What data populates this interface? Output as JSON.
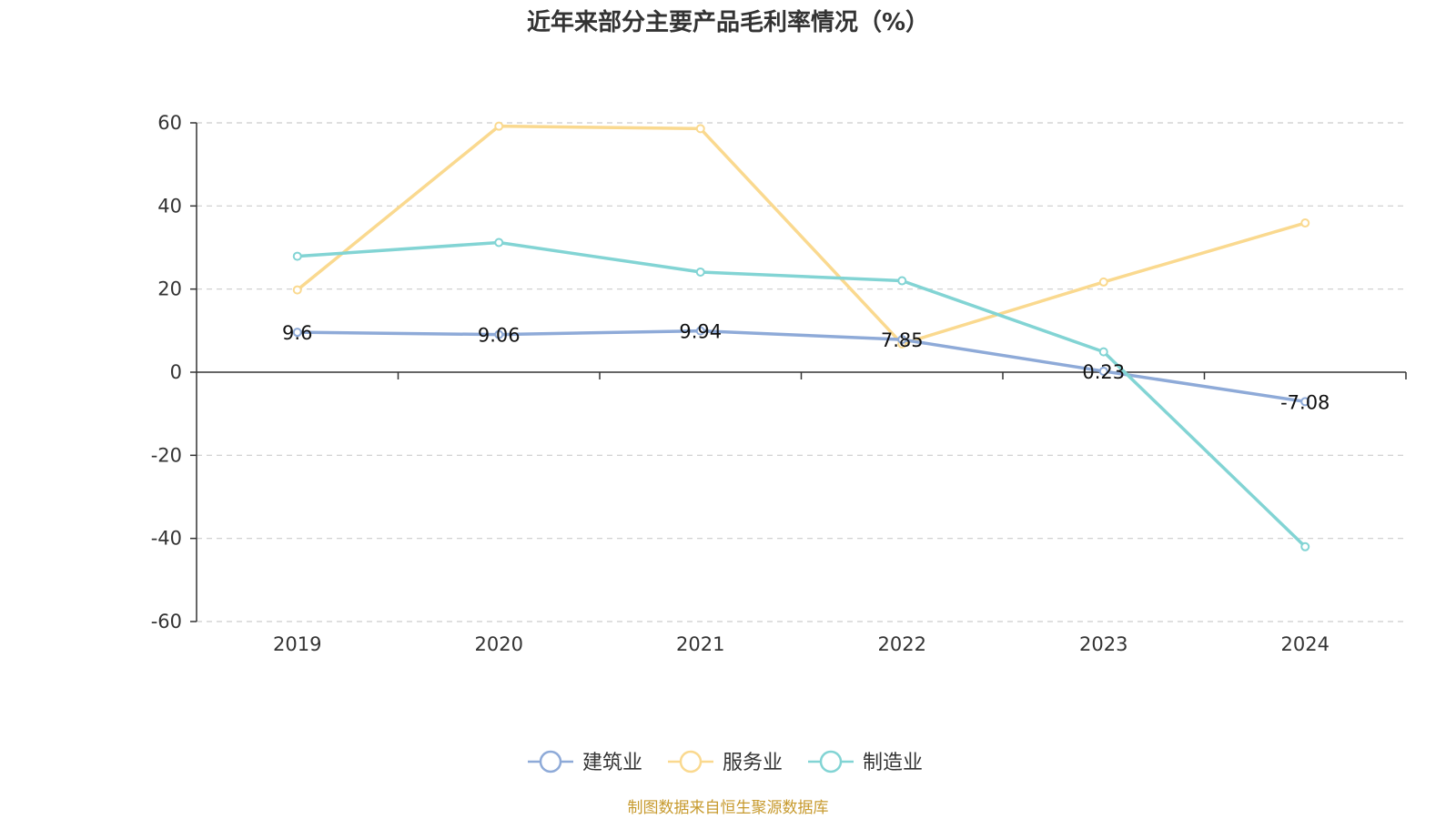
{
  "chart_data": {
    "type": "line",
    "title": "近年来部分主要产品毛利率情况（%）",
    "categories": [
      "2019",
      "2020",
      "2021",
      "2022",
      "2023",
      "2024"
    ],
    "y_ticks": [
      "60",
      "40",
      "20",
      "0",
      "-20",
      "-40",
      "-60"
    ],
    "ylim": [
      -60,
      60
    ],
    "grid": "horizontal-dashed",
    "legend_position": "bottom-center",
    "series": [
      {
        "name": "建筑业",
        "color": "#8eaad8",
        "values": [
          9.6,
          9.06,
          9.94,
          7.85,
          0.23,
          -7.08
        ],
        "data_labels": [
          "9.6",
          "9.06",
          "9.94",
          "7.85",
          "0.23",
          "-7.08"
        ]
      },
      {
        "name": "服务业",
        "color": "#fad98f",
        "values": [
          19.8,
          59.2,
          58.6,
          6.8,
          21.7,
          35.9
        ]
      },
      {
        "name": "制造业",
        "color": "#82d4d4",
        "values": [
          27.9,
          31.2,
          24.1,
          22.0,
          4.9,
          -42.0
        ]
      }
    ]
  },
  "source": {
    "text": "制图数据来自恒生聚源数据库",
    "color": "#c79a2e"
  }
}
